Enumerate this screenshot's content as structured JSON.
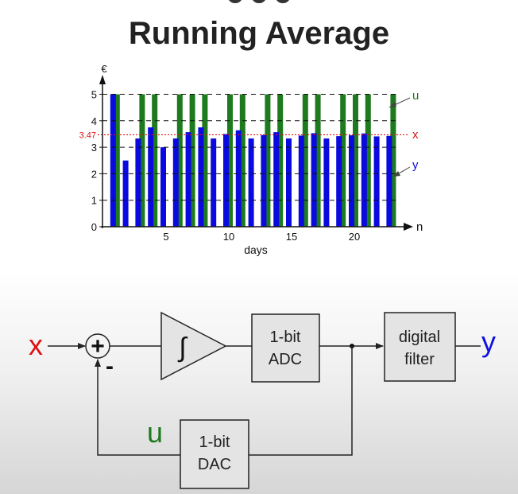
{
  "title": "Running Average",
  "chart_data": {
    "type": "bar",
    "x": [
      1,
      2,
      3,
      4,
      5,
      6,
      7,
      8,
      9,
      10,
      11,
      12,
      13,
      14,
      15,
      16,
      17,
      18,
      19,
      20,
      21,
      22,
      23
    ],
    "xticks": [
      5,
      10,
      15,
      20
    ],
    "yticks": [
      0,
      1,
      2,
      3,
      4,
      5
    ],
    "ylim": [
      0,
      5.5
    ],
    "xlim": [
      0,
      24
    ],
    "y_unit": "€",
    "x_axis_end_label": "n",
    "xlabel": "days",
    "reference_value": 3.47,
    "reference_label": "3.47",
    "series": [
      {
        "name": "u",
        "color": "#1e7a1e",
        "values": [
          5,
          0,
          5,
          5,
          0,
          5,
          5,
          5,
          0,
          5,
          5,
          0,
          5,
          5,
          0,
          5,
          5,
          0,
          5,
          5,
          5,
          0,
          5
        ]
      },
      {
        "name": "y",
        "color": "#0a0ae0",
        "values": [
          5,
          2.5,
          3.33,
          3.75,
          3,
          3.33,
          3.57,
          3.75,
          3.33,
          3.5,
          3.64,
          3.33,
          3.46,
          3.57,
          3.33,
          3.44,
          3.53,
          3.33,
          3.42,
          3.45,
          3.52,
          3.41,
          3.43
        ]
      }
    ],
    "side_labels": {
      "u": "u",
      "x": "x",
      "y": "y"
    },
    "x_color": "#e01010"
  },
  "diagram": {
    "input_label": "x",
    "sum_symbol": "+",
    "minus_sign": "-",
    "integrator_symbol": "∫",
    "adc_line1": "1-bit",
    "adc_line2": "ADC",
    "filter_line1": "digital",
    "filter_line2": "filter",
    "output_label": "y",
    "dac_line1": "1-bit",
    "dac_line2": "DAC",
    "feedback_label": "u",
    "colors": {
      "x": "#e01010",
      "y": "#1010e0",
      "u": "#1e7a1e"
    }
  }
}
